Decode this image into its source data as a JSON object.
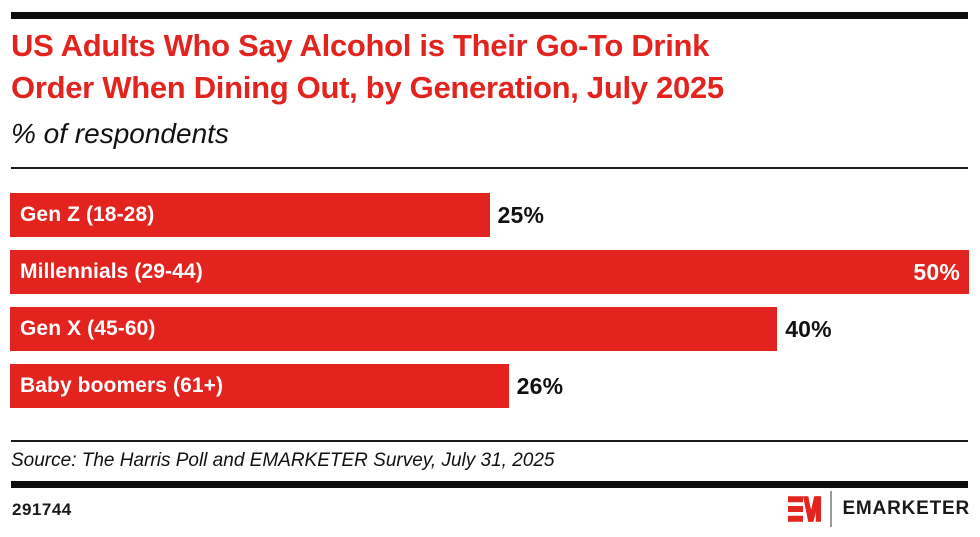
{
  "header": {
    "title_line1": "US Adults Who Say Alcohol is Their Go-To Drink",
    "title_line2": "Order When Dining Out, by Generation, July 2025",
    "subtitle": "% of respondents"
  },
  "chart_data": {
    "type": "bar",
    "orientation": "horizontal",
    "title": "US Adults Who Say Alcohol is Their Go-To Drink Order When Dining Out, by Generation, July 2025",
    "unit_note": "% of respondents",
    "categories": [
      "Gen Z (18-28)",
      "Millennials (29-44)",
      "Gen X (45-60)",
      "Baby boomers (61+)"
    ],
    "values": [
      25,
      50,
      40,
      26
    ],
    "value_labels": [
      "25%",
      "50%",
      "40%",
      "26%"
    ],
    "value_label_inside": [
      false,
      true,
      false,
      false
    ],
    "xlim": [
      0,
      50
    ],
    "grid": false,
    "legend": false,
    "bar_color": "#e2231e"
  },
  "footer": {
    "source": "Source: The Harris Poll and EMARKETER Survey, July 31, 2025",
    "chart_id": "291744",
    "brand_name": "EMARKETER"
  },
  "colors": {
    "accent_red": "#e2231e",
    "rule_black": "#0d0d0d",
    "text_black": "#111111",
    "background": "#ffffff"
  }
}
